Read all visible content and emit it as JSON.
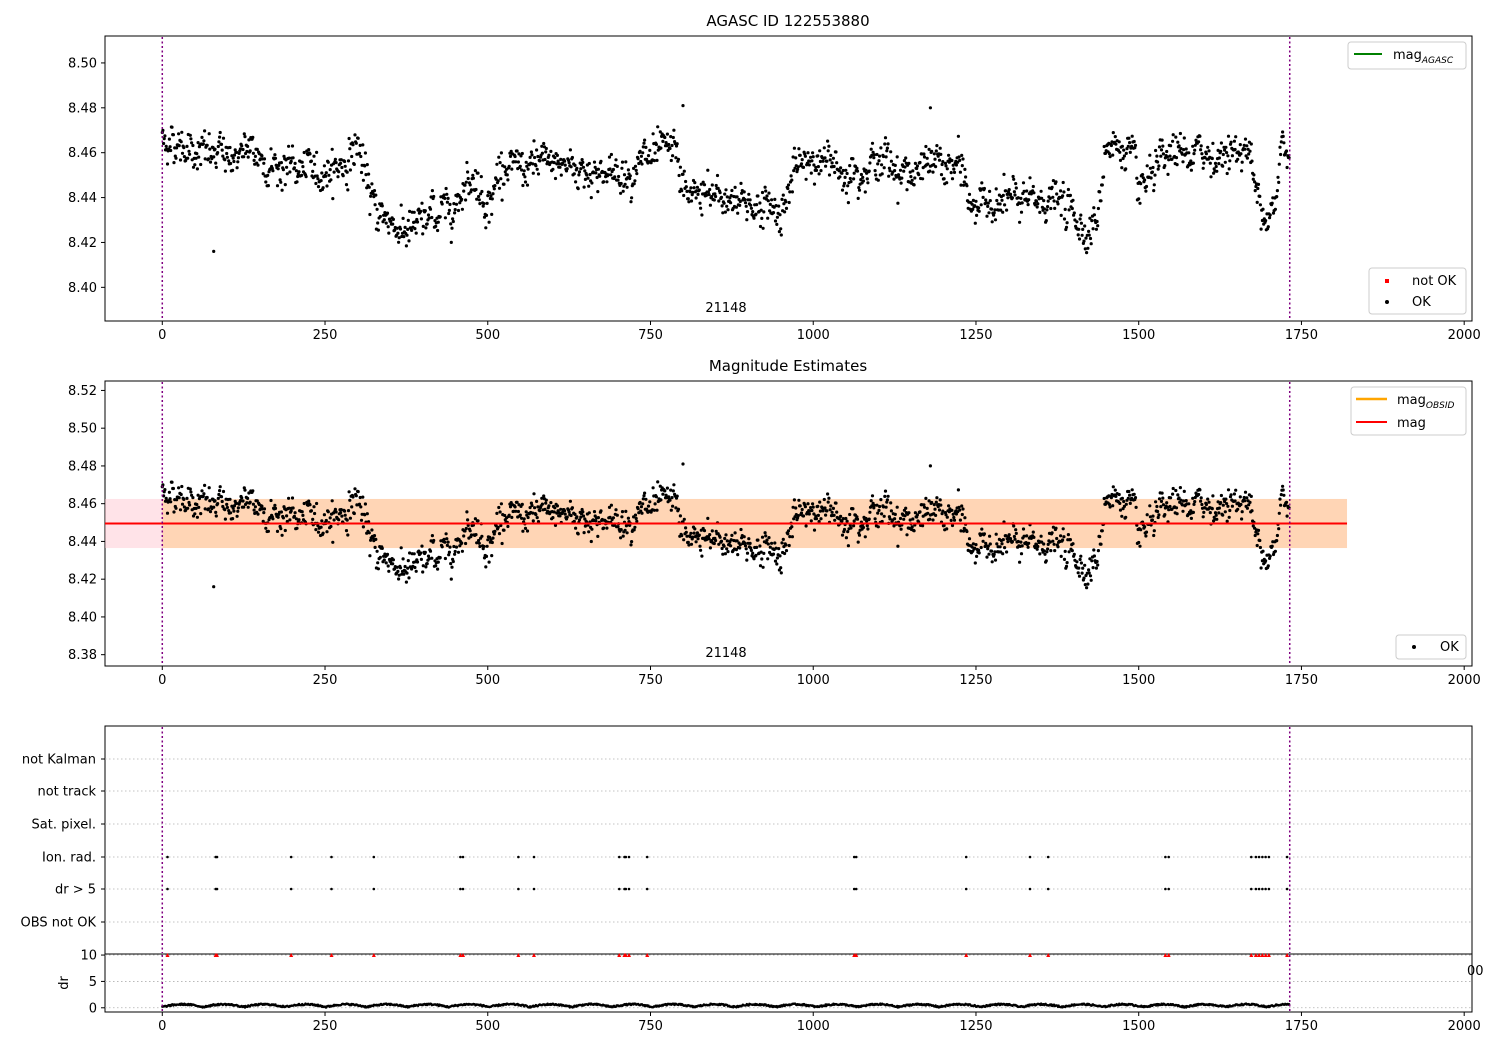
{
  "chart_data": [
    {
      "type": "scatter",
      "title": "AGASC ID 122553880",
      "xlim": [
        -88,
        2012
      ],
      "ylim": [
        8.385,
        8.512
      ],
      "xticks": [
        0,
        250,
        500,
        750,
        1000,
        1250,
        1500,
        1750,
        2000
      ],
      "xtick_labels": [
        "0",
        "250",
        "500",
        "750",
        "1000",
        "1250",
        "1500",
        "1750",
        "2000"
      ],
      "yticks": [
        8.4,
        8.42,
        8.44,
        8.46,
        8.48,
        8.5
      ],
      "ytick_labels": [
        "8.40",
        "8.42",
        "8.44",
        "8.46",
        "8.48",
        "8.50"
      ],
      "obsid_label": "21148",
      "obsid_boundaries": [
        0,
        1732
      ],
      "legend_lines": [
        {
          "name": "mag",
          "sub": "AGASC",
          "color": "#008000"
        }
      ],
      "legend_points": [
        {
          "name": "not OK",
          "color": "#ff0000"
        },
        {
          "name": "OK",
          "color": "#000000"
        }
      ],
      "legend_lines_position": "upper right",
      "legend_points_position": "lower right",
      "series": [
        {
          "name": "OK",
          "color": "#000000",
          "n_points": 1732,
          "x_range": [
            0,
            1731
          ],
          "trend_knots": [
            [
              0,
              8.466
            ],
            [
              40,
              8.463
            ],
            [
              80,
              8.458
            ],
            [
              130,
              8.46
            ],
            [
              180,
              8.454
            ],
            [
              240,
              8.451
            ],
            [
              285,
              8.456
            ],
            [
              300,
              8.465
            ],
            [
              320,
              8.438
            ],
            [
              360,
              8.427
            ],
            [
              390,
              8.426
            ],
            [
              420,
              8.433
            ],
            [
              450,
              8.437
            ],
            [
              470,
              8.452
            ],
            [
              500,
              8.438
            ],
            [
              520,
              8.453
            ],
            [
              560,
              8.452
            ],
            [
              600,
              8.456
            ],
            [
              660,
              8.452
            ],
            [
              700,
              8.45
            ],
            [
              740,
              8.456
            ],
            [
              790,
              8.46
            ],
            [
              800,
              8.442
            ],
            [
              850,
              8.44
            ],
            [
              900,
              8.438
            ],
            [
              950,
              8.434
            ],
            [
              970,
              8.45
            ],
            [
              1000,
              8.458
            ],
            [
              1050,
              8.452
            ],
            [
              1100,
              8.457
            ],
            [
              1150,
              8.451
            ],
            [
              1190,
              8.455
            ],
            [
              1230,
              8.452
            ],
            [
              1240,
              8.436
            ],
            [
              1290,
              8.44
            ],
            [
              1330,
              8.437
            ],
            [
              1370,
              8.44
            ],
            [
              1420,
              8.426
            ],
            [
              1440,
              8.433
            ],
            [
              1450,
              8.466
            ],
            [
              1490,
              8.458
            ],
            [
              1500,
              8.44
            ],
            [
              1530,
              8.452
            ],
            [
              1560,
              8.459
            ],
            [
              1620,
              8.459
            ],
            [
              1670,
              8.462
            ],
            [
              1680,
              8.44
            ],
            [
              1710,
              8.434
            ],
            [
              1720,
              8.465
            ],
            [
              1731,
              8.458
            ]
          ],
          "noise_sd": 0.006,
          "outliers": [
            [
              79,
              8.416
            ],
            [
              800,
              8.481
            ],
            [
              1180,
              8.48
            ]
          ]
        }
      ]
    },
    {
      "type": "scatter",
      "title": "Magnitude Estimates",
      "xlim": [
        -88,
        2012
      ],
      "ylim": [
        8.374,
        8.525
      ],
      "xticks": [
        0,
        250,
        500,
        750,
        1000,
        1250,
        1500,
        1750,
        2000
      ],
      "xtick_labels": [
        "0",
        "250",
        "500",
        "750",
        "1000",
        "1250",
        "1500",
        "1750",
        "2000"
      ],
      "yticks": [
        8.38,
        8.4,
        8.42,
        8.44,
        8.46,
        8.48,
        8.5,
        8.52
      ],
      "ytick_labels": [
        "8.38",
        "8.40",
        "8.42",
        "8.44",
        "8.46",
        "8.48",
        "8.50",
        "8.52"
      ],
      "obsid_label": "21148",
      "obsid_boundaries": [
        0,
        1732
      ],
      "mag_line": {
        "name": "mag",
        "value": 8.4495,
        "color": "#ff0000",
        "x_range": [
          -88,
          1820
        ]
      },
      "mag_band": {
        "low": 8.4365,
        "high": 8.4625,
        "color": "#ffc0cb",
        "x_range": [
          -88,
          1820
        ]
      },
      "mag_obsid": {
        "name": "mag",
        "sub": "OBSID",
        "color": "#ffa500",
        "value": 8.4495,
        "low": 8.4365,
        "high": 8.4625,
        "x_range": [
          0,
          1820
        ]
      },
      "legend_lines": [
        {
          "name": "mag",
          "sub": "OBSID",
          "color": "#ffa500"
        },
        {
          "name": "mag",
          "sub": "",
          "color": "#ff0000"
        }
      ],
      "legend_points": [
        {
          "name": "OK",
          "color": "#000000"
        }
      ],
      "legend_lines_position": "upper right",
      "legend_points_position": "lower right",
      "series_ref": "same data as panel 1"
    },
    {
      "type": "scatter",
      "title": "",
      "xlim": [
        -88,
        2012
      ],
      "categories": [
        "not Kalman",
        "not track",
        "Sat. pixel.",
        "Ion. rad.",
        "dr > 5",
        "OBS not OK"
      ],
      "flag_x": [
        8,
        82,
        84,
        198,
        260,
        325,
        458,
        462,
        547,
        571,
        702,
        710,
        712,
        717,
        745,
        1063,
        1066,
        1235,
        1333,
        1361,
        1541,
        1546,
        1673,
        1680,
        1685,
        1690,
        1695,
        1700,
        1728
      ],
      "flagged_categories": [
        "Ion. rad.",
        "dr > 5"
      ],
      "grid": true
    },
    {
      "type": "scatter",
      "ylabel": "dr",
      "xlim": [
        -88,
        2012
      ],
      "ylim": [
        -0.8,
        10.2
      ],
      "yticks": [
        0,
        5,
        10
      ],
      "ytick_labels": [
        "0",
        "5",
        "10"
      ],
      "xticks": [
        0,
        250,
        500,
        750,
        1000,
        1250,
        1500,
        1750,
        2000
      ],
      "xtick_labels": [
        "0",
        "250",
        "500",
        "750",
        "1000",
        "1250",
        "1500",
        "1750",
        "2000"
      ],
      "overlap_tick_label": "00",
      "dr_typical": [
        0.0,
        0.8
      ],
      "dr_clipped_value": 10,
      "dr_clipped_x_ref": "flag_x of panel 3",
      "grid": true
    }
  ]
}
